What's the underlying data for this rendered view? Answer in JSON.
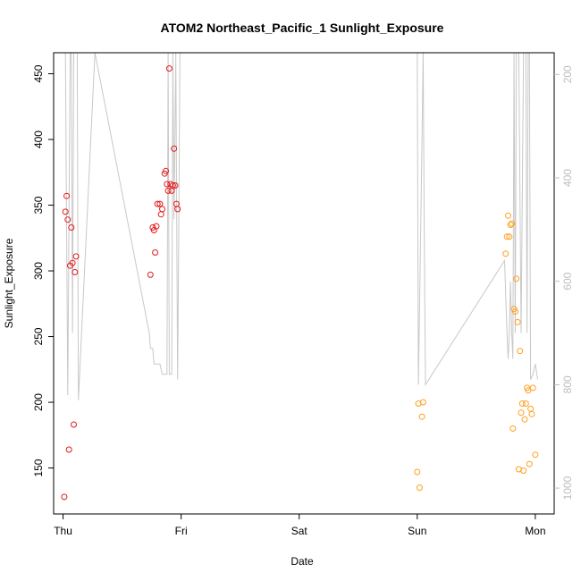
{
  "chart_data": {
    "type": "scatter",
    "title": "ATOM2 Northeast_Pacific_1 Sunlight_Exposure",
    "xlabel": "Date",
    "ylabel": "Sunlight_Exposure",
    "x_ticks": [
      "Thu",
      "Fri",
      "Sat",
      "Sun",
      "Mon"
    ],
    "xlim": [
      -0.08,
      4.16
    ],
    "ylim": [
      115,
      466
    ],
    "y_ticks": [
      150,
      200,
      250,
      300,
      350,
      400,
      450
    ],
    "y2_ticks": [
      200,
      400,
      600,
      800,
      1000
    ],
    "y2lim": [
      158,
      1050
    ],
    "y2_inverted": true,
    "grid": false,
    "series": [
      {
        "color": "#e41a1c",
        "points": [
          [
            0.01,
            128
          ],
          [
            0.02,
            345
          ],
          [
            0.03,
            357
          ],
          [
            0.04,
            339
          ],
          [
            0.05,
            164
          ],
          [
            0.06,
            304
          ],
          [
            0.07,
            333
          ],
          [
            0.08,
            306
          ],
          [
            0.09,
            183
          ],
          [
            0.1,
            299
          ],
          [
            0.11,
            311
          ],
          [
            0.74,
            297
          ],
          [
            0.76,
            333
          ],
          [
            0.77,
            331
          ],
          [
            0.78,
            314
          ],
          [
            0.79,
            334
          ],
          [
            0.8,
            351
          ],
          [
            0.82,
            351
          ],
          [
            0.83,
            343
          ],
          [
            0.84,
            347
          ],
          [
            0.86,
            374
          ],
          [
            0.87,
            376
          ],
          [
            0.88,
            366
          ],
          [
            0.89,
            361
          ],
          [
            0.9,
            454
          ],
          [
            0.91,
            366
          ],
          [
            0.92,
            361
          ],
          [
            0.93,
            365
          ],
          [
            0.94,
            393
          ],
          [
            0.95,
            365
          ],
          [
            0.96,
            351
          ],
          [
            0.97,
            347
          ]
        ]
      },
      {
        "color": "#ff9f1c",
        "points": [
          [
            3.0,
            147
          ],
          [
            3.01,
            199
          ],
          [
            3.02,
            135
          ],
          [
            3.04,
            189
          ],
          [
            3.05,
            200
          ],
          [
            3.75,
            313
          ],
          [
            3.76,
            326
          ],
          [
            3.77,
            342
          ],
          [
            3.78,
            326
          ],
          [
            3.79,
            335
          ],
          [
            3.8,
            336
          ],
          [
            3.81,
            180
          ],
          [
            3.82,
            271
          ],
          [
            3.83,
            269
          ],
          [
            3.84,
            294
          ],
          [
            3.85,
            261
          ],
          [
            3.86,
            149
          ],
          [
            3.87,
            239
          ],
          [
            3.88,
            192
          ],
          [
            3.89,
            199
          ],
          [
            3.9,
            148
          ],
          [
            3.91,
            187
          ],
          [
            3.92,
            199
          ],
          [
            3.93,
            211
          ],
          [
            3.94,
            209
          ],
          [
            3.95,
            153
          ],
          [
            3.96,
            195
          ],
          [
            3.97,
            191
          ],
          [
            3.98,
            211
          ],
          [
            4.0,
            160
          ]
        ]
      }
    ],
    "secondary_line": {
      "color": "#c8c8c8",
      "points": [
        [
          0.0,
          158
        ],
        [
          0.02,
          158
        ],
        [
          0.04,
          820
        ],
        [
          0.06,
          158
        ],
        [
          0.07,
          158
        ],
        [
          0.08,
          700
        ],
        [
          0.09,
          158
        ],
        [
          0.1,
          158
        ],
        [
          0.11,
          158
        ],
        [
          0.12,
          158
        ],
        [
          0.13,
          830
        ],
        [
          0.27,
          158
        ],
        [
          0.73,
          700
        ],
        [
          0.74,
          730
        ],
        [
          0.76,
          730
        ],
        [
          0.77,
          760
        ],
        [
          0.82,
          760
        ],
        [
          0.84,
          780
        ],
        [
          0.88,
          780
        ],
        [
          0.89,
          158
        ],
        [
          0.9,
          780
        ],
        [
          0.92,
          780
        ],
        [
          0.93,
          158
        ],
        [
          0.94,
          480
        ],
        [
          0.955,
          158
        ],
        [
          0.97,
          790
        ],
        [
          0.98,
          500
        ],
        [
          0.99,
          158
        ],
        [
          3.0,
          158
        ],
        [
          3.01,
          800
        ],
        [
          3.04,
          330
        ],
        [
          3.05,
          158
        ],
        [
          3.06,
          520
        ],
        [
          3.07,
          800
        ],
        [
          3.74,
          560
        ],
        [
          3.76,
          700
        ],
        [
          3.77,
          750
        ],
        [
          3.78,
          700
        ],
        [
          3.79,
          600
        ],
        [
          3.8,
          700
        ],
        [
          3.81,
          750
        ],
        [
          3.82,
          158
        ],
        [
          3.83,
          700
        ],
        [
          3.84,
          158
        ],
        [
          3.86,
          158
        ],
        [
          3.88,
          700
        ],
        [
          3.9,
          158
        ],
        [
          3.92,
          158
        ],
        [
          3.93,
          700
        ],
        [
          3.94,
          158
        ],
        [
          3.95,
          158
        ],
        [
          3.96,
          790
        ],
        [
          3.98,
          780
        ],
        [
          4.0,
          760
        ],
        [
          4.02,
          790
        ]
      ]
    }
  }
}
